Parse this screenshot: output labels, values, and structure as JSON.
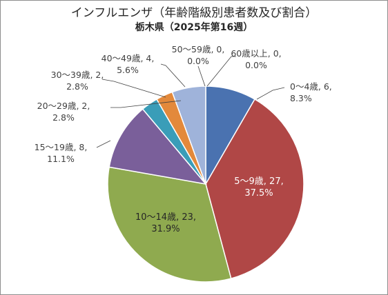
{
  "chart_data": {
    "type": "pie",
    "title": "インフルエンザ（年齢階級別患者数及び割合）",
    "subtitle": "栃木県（2025年第16週）",
    "categories": [
      "0～4歳",
      "5～9歳",
      "10～14歳",
      "15～19歳",
      "20～29歳",
      "30～39歳",
      "40～49歳",
      "50～59歳",
      "60歳以上"
    ],
    "values": [
      6,
      27,
      23,
      8,
      2,
      2,
      4,
      0,
      0
    ],
    "percent_labels": [
      "8.3%",
      "37.5%",
      "31.9%",
      "11.1%",
      "2.8%",
      "2.8%",
      "5.6%",
      "0.0%",
      "0.0%"
    ],
    "colors": [
      "#4a72b0",
      "#b04746",
      "#8faa4f",
      "#7a5f9a",
      "#3a9db8",
      "#e3893b",
      "#9fb3da",
      "#ffffff",
      "#ffffff"
    ],
    "data_labels": [
      {
        "line1": "0～4歳, 6,",
        "line2": "8.3%"
      },
      {
        "line1": "5～9歳, 27,",
        "line2": "37.5%"
      },
      {
        "line1": "10～14歳, 23,",
        "line2": "31.9%"
      },
      {
        "line1": "15～19歳, 8,",
        "line2": "11.1%"
      },
      {
        "line1": "20～29歳, 2,",
        "line2": "2.8%"
      },
      {
        "line1": "30～39歳, 2,",
        "line2": "2.8%"
      },
      {
        "line1": "40～49歳, 4,",
        "line2": "5.6%"
      },
      {
        "line1": "50～59歳, 0,",
        "line2": "0.0%"
      },
      {
        "line1": "60歳以上, 0,",
        "line2": "0.0%"
      }
    ]
  }
}
